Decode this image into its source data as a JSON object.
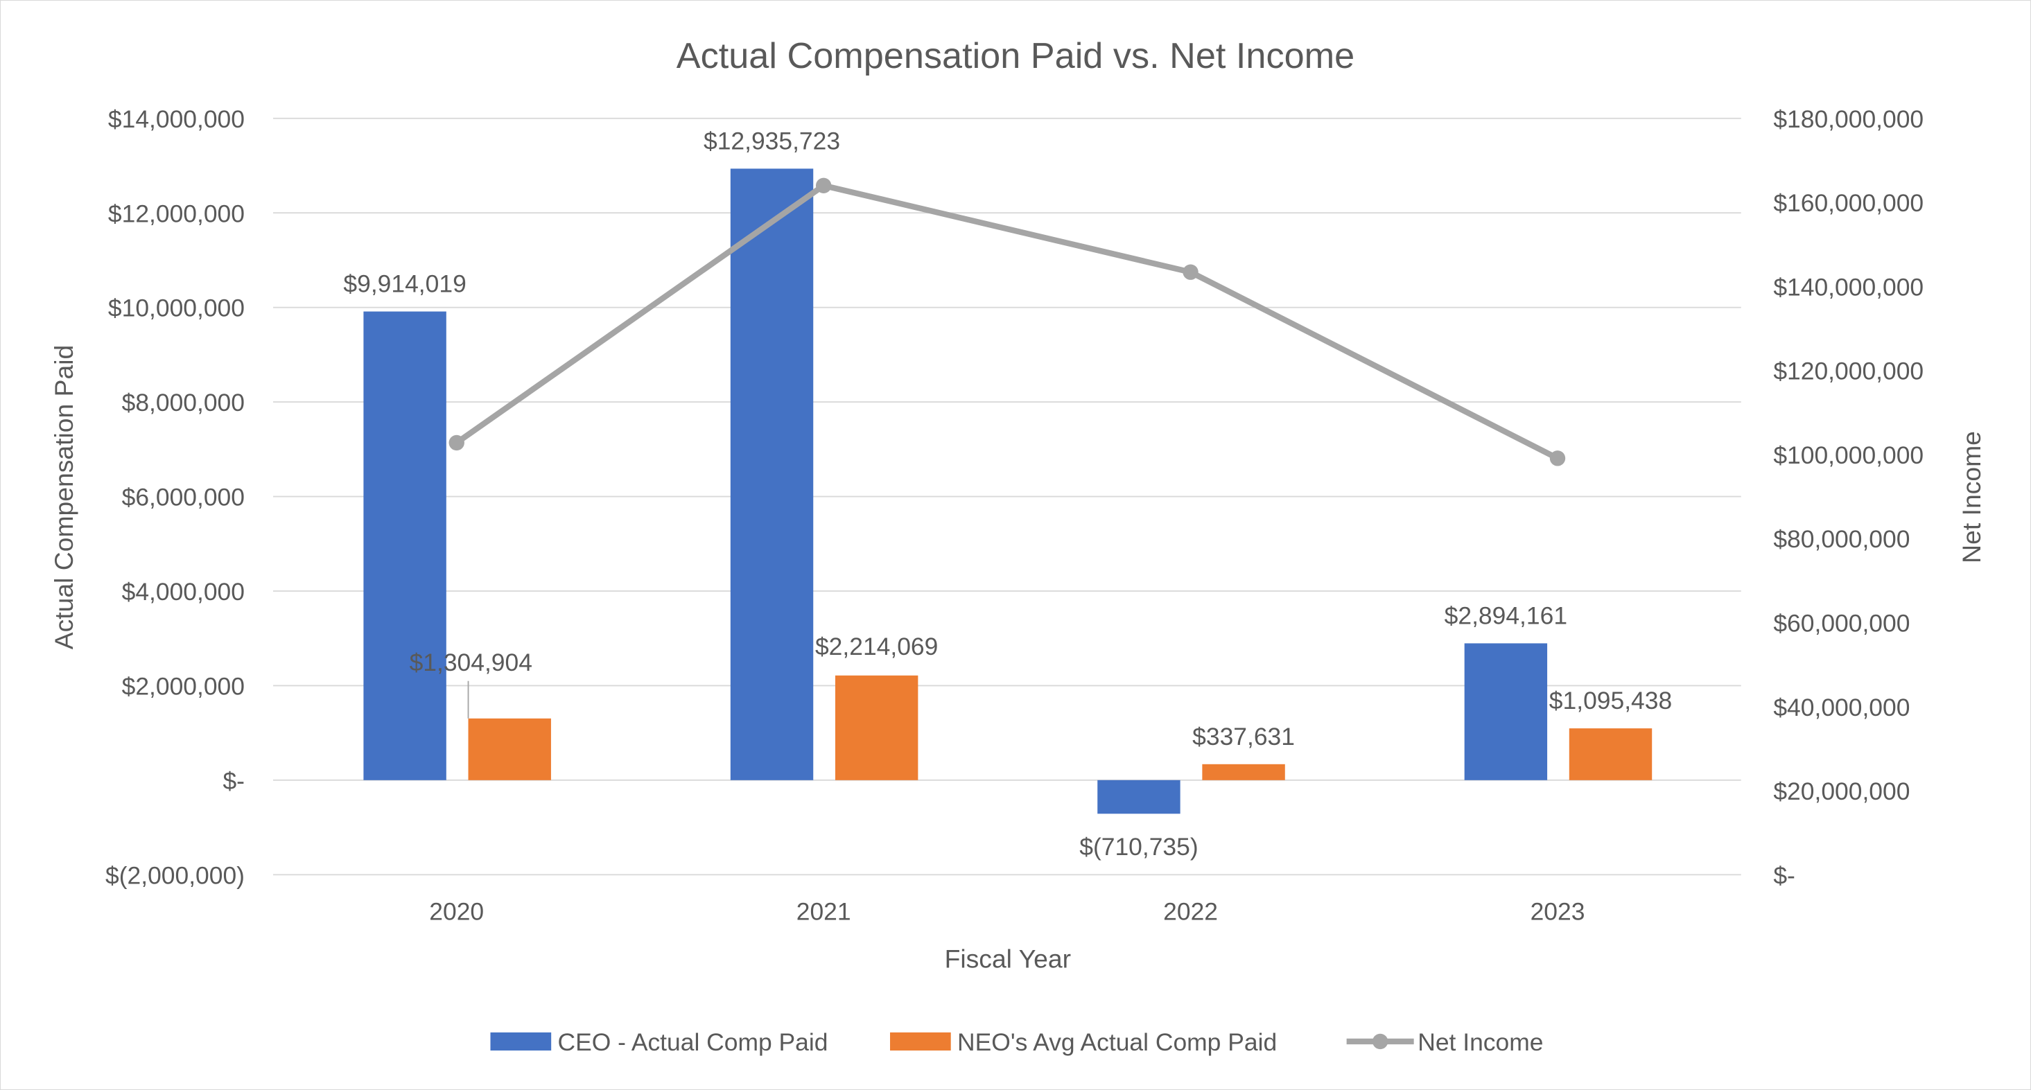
{
  "chart_data": {
    "type": "bar+line",
    "title": "Actual Compensation Paid vs. Net Income",
    "xlabel": "Fiscal Year",
    "ylabel": "Actual Compensation Paid",
    "y2label": "Net Income",
    "categories": [
      "2020",
      "2021",
      "2022",
      "2023"
    ],
    "ylim": [
      -2000000,
      14000000
    ],
    "y_ticks": [
      "$(2,000,000)",
      "$-",
      "$2,000,000",
      "$4,000,000",
      "$6,000,000",
      "$8,000,000",
      "$10,000,000",
      "$12,000,000",
      "$14,000,000"
    ],
    "y2lim": [
      0,
      180000000
    ],
    "y2_ticks": [
      "$-",
      "$20,000,000",
      "$40,000,000",
      "$60,000,000",
      "$80,000,000",
      "$100,000,000",
      "$120,000,000",
      "$140,000,000",
      "$160,000,000",
      "$180,000,000"
    ],
    "grid": true,
    "legend": "bottom",
    "series": [
      {
        "name": "CEO - Actual Comp Paid",
        "type": "bar",
        "axis": "left",
        "color": "#4472C4",
        "values": [
          9914019,
          12935723,
          -710735,
          2894161
        ],
        "labels": [
          "$9,914,019",
          "$12,935,723",
          "$(710,735)",
          "$2,894,161"
        ]
      },
      {
        "name": "NEO's Avg Actual Comp Paid",
        "type": "bar",
        "axis": "left",
        "color": "#ED7D31",
        "values": [
          1304904,
          2214069,
          337631,
          1095438
        ],
        "labels": [
          "$1,304,904",
          "$2,214,069",
          "$337,631",
          "$1,095,438"
        ]
      },
      {
        "name": "Net Income",
        "type": "line",
        "axis": "right",
        "color": "#A5A5A5",
        "values": [
          102800000,
          164000000,
          143400000,
          99100000
        ]
      }
    ]
  }
}
